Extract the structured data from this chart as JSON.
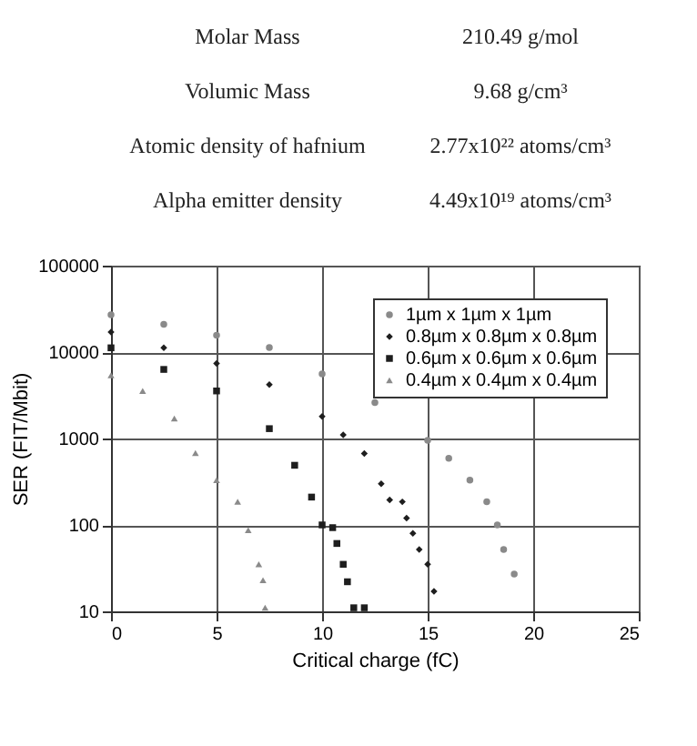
{
  "chart_data": [
    {
      "type": "other",
      "annotations": [
        "Molar Mass",
        "210.49 g/mol",
        "Volumic Mass",
        "9.68 g/cm³",
        "Atomic density of hafnium",
        "2.77x10²² atoms/cm³",
        "Alpha emitter density",
        "4.49x10¹⁹ atoms/cm³"
      ]
    },
    {
      "type": "scatter",
      "xlabel": "Critical charge (fC)",
      "ylabel": "SER (FIT/Mbit)",
      "log": "y",
      "grid": true,
      "legend": "top right",
      "xlim": [
        0,
        25
      ],
      "xticks": [
        0,
        5,
        10,
        15,
        20,
        25
      ],
      "ylim": [
        10,
        100000
      ],
      "yticks": [
        10,
        100,
        1000,
        10000,
        100000
      ],
      "series": [
        {
          "name": "1µm x 1µm x 1µm",
          "color": "#8a8a8a",
          "marker": "circle",
          "x": [
            0,
            2.5,
            5,
            7.5,
            10,
            12.5,
            15,
            16,
            17,
            17.8,
            18.3,
            18.6,
            19.1
          ],
          "values": [
            27000,
            21000,
            15700,
            11300,
            5600,
            2600,
            950,
            590,
            330,
            186,
            100,
            52,
            27
          ]
        },
        {
          "name": "0.8µm x 0.8µm x 0.8µm",
          "color": "#1e1e1e",
          "marker": "diamond",
          "x": [
            0,
            2.5,
            5,
            7.5,
            10,
            11,
            12,
            12.8,
            13.2,
            13.8,
            14,
            14.3,
            14.6,
            15,
            15.3
          ],
          "values": [
            17000,
            11200,
            7400,
            4200,
            1800,
            1100,
            670,
            300,
            195,
            185,
            120,
            80,
            52,
            35,
            17
          ]
        },
        {
          "name": "0.6µm x 0.6µm x 0.6µm",
          "color": "#1e1e1e",
          "marker": "square",
          "x": [
            0,
            2.5,
            5,
            7.5,
            8.7,
            9.5,
            10,
            10.5,
            10.7,
            11,
            11.2,
            11.5,
            12
          ],
          "values": [
            11200,
            6300,
            3550,
            1300,
            490,
            210,
            100,
            93,
            61,
            35,
            22,
            11,
            11
          ]
        },
        {
          "name": "0.4µm x 0.4µm x 0.4µm",
          "color": "#8a8a8a",
          "marker": "triangle",
          "x": [
            0,
            1.5,
            3,
            4,
            5,
            6,
            6.5,
            7,
            7.2,
            7.3
          ],
          "values": [
            5400,
            3550,
            1700,
            680,
            330,
            186,
            87,
            35,
            23,
            11
          ]
        }
      ]
    }
  ]
}
